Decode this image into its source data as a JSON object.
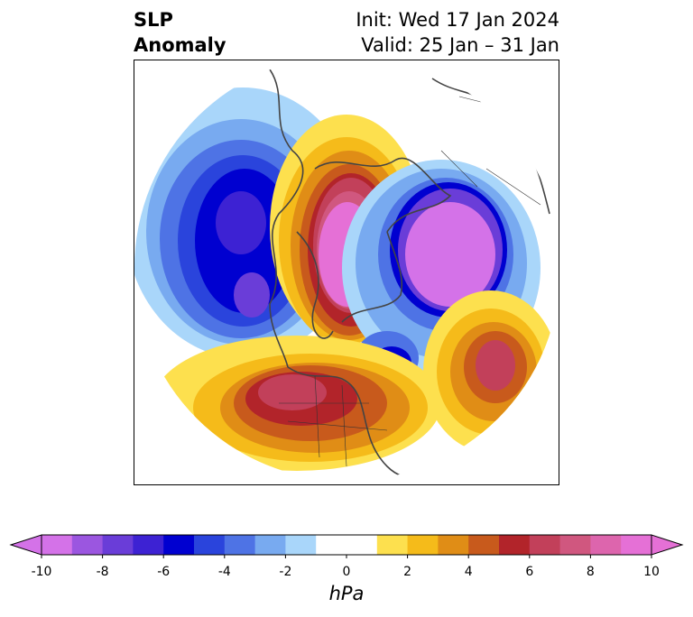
{
  "title": {
    "variable_line1": "SLP",
    "variable_line2": "Anomaly",
    "init": "Init: Wed 17 Jan 2024",
    "valid": "Valid: 25 Jan – 31 Jan"
  },
  "colorbar": {
    "units": "hPa",
    "ticks": [
      "-10",
      "-8",
      "-6",
      "-4",
      "-2",
      "0",
      "2",
      "4",
      "6",
      "8",
      "10"
    ],
    "colors": [
      "#d472e8",
      "#9b56e0",
      "#6a3dd8",
      "#3d22d3",
      "#0000d0",
      "#2a44dc",
      "#4e73e5",
      "#78aaf0",
      "#a9d6fa",
      "#ffffff",
      "#ffffff",
      "#fde04e",
      "#f5bb1a",
      "#e08d16",
      "#c85a1c",
      "#b2242a",
      "#c2405a",
      "#d0577f",
      "#dd65ad",
      "#e570d6"
    ],
    "under_color": "#d472e8",
    "over_color": "#e570d6"
  }
}
